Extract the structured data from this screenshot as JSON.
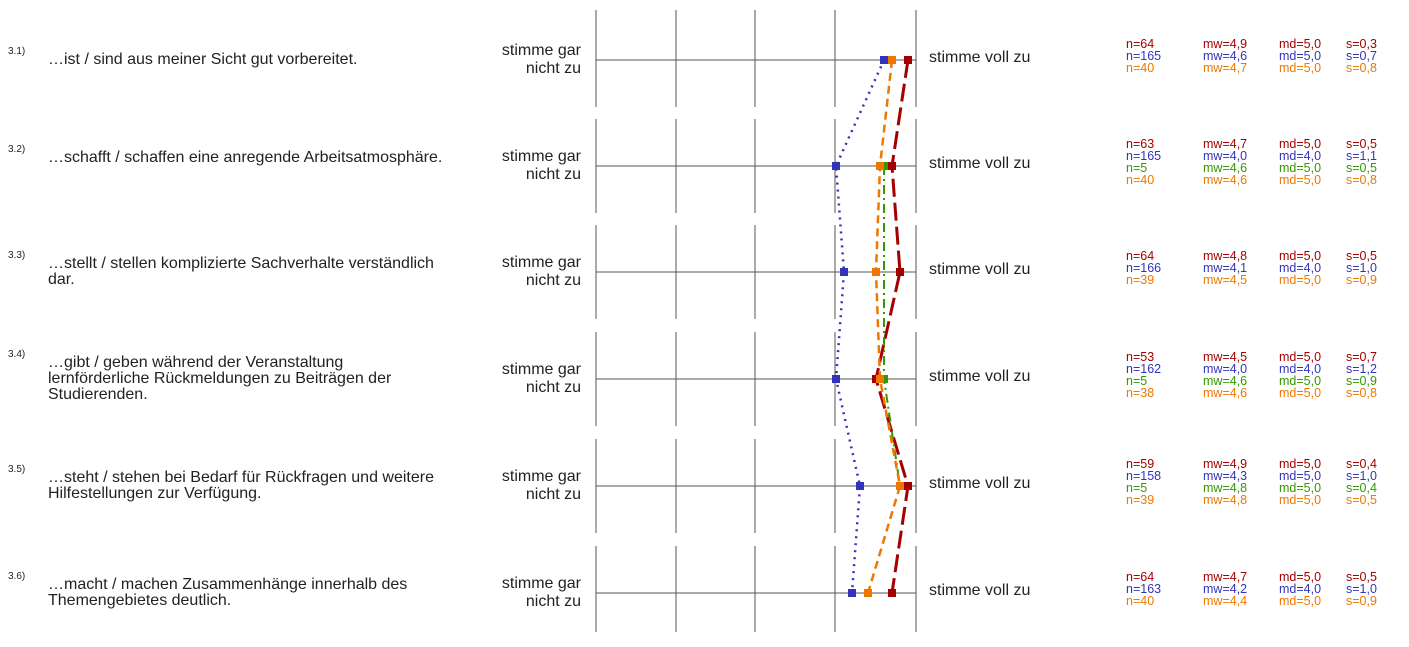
{
  "chart_data": {
    "type": "line",
    "scale": {
      "min": 1,
      "max": 5
    },
    "anchors": {
      "left": "stimme gar nicht zu",
      "right": "stimme voll zu"
    },
    "series": [
      {
        "color": "#a50000",
        "dash": "long-dash"
      },
      {
        "color": "#3333bb",
        "dash": "dotted"
      },
      {
        "color": "#339900",
        "dash": "dash-dot"
      },
      {
        "color": "#ee7700",
        "dash": "dashed"
      }
    ],
    "items": [
      {
        "num": "3.1)",
        "text": "…ist / sind aus meiner Sicht gut vorbereitet.",
        "stats": [
          {
            "series": 0,
            "n": "n=64",
            "mw": "mw=4,9",
            "md": "md=5,0",
            "s": "s=0,3",
            "value": 4.9
          },
          {
            "series": 1,
            "n": "n=165",
            "mw": "mw=4,6",
            "md": "md=5,0",
            "s": "s=0,7",
            "value": 4.6
          },
          {
            "series": 3,
            "n": "n=40",
            "mw": "mw=4,7",
            "md": "md=5,0",
            "s": "s=0,8",
            "value": 4.7
          }
        ]
      },
      {
        "num": "3.2)",
        "text": "…schafft / schaffen eine anregende Arbeitsatmosphäre.",
        "stats": [
          {
            "series": 0,
            "n": "n=63",
            "mw": "mw=4,7",
            "md": "md=5,0",
            "s": "s=0,5",
            "value": 4.7
          },
          {
            "series": 1,
            "n": "n=165",
            "mw": "mw=4,0",
            "md": "md=4,0",
            "s": "s=1,1",
            "value": 4.0
          },
          {
            "series": 2,
            "n": "n=5",
            "mw": "mw=4,6",
            "md": "md=5,0",
            "s": "s=0,5",
            "value": 4.6
          },
          {
            "series": 3,
            "n": "n=40",
            "mw": "mw=4,6",
            "md": "md=5,0",
            "s": "s=0,8",
            "value": 4.55
          }
        ]
      },
      {
        "num": "3.3)",
        "text": "…stellt / stellen komplizierte Sachverhalte verständlich dar.",
        "stats": [
          {
            "series": 0,
            "n": "n=64",
            "mw": "mw=4,8",
            "md": "md=5,0",
            "s": "s=0,5",
            "value": 4.8
          },
          {
            "series": 1,
            "n": "n=166",
            "mw": "mw=4,1",
            "md": "md=4,0",
            "s": "s=1,0",
            "value": 4.1
          },
          {
            "series": 3,
            "n": "n=39",
            "mw": "mw=4,5",
            "md": "md=5,0",
            "s": "s=0,9",
            "value": 4.5
          }
        ]
      },
      {
        "num": "3.4)",
        "text": "…gibt / geben während der Veranstaltung lernförderliche Rückmeldungen zu Beiträgen der Studierenden.",
        "stats": [
          {
            "series": 0,
            "n": "n=53",
            "mw": "mw=4,5",
            "md": "md=5,0",
            "s": "s=0,7",
            "value": 4.5
          },
          {
            "series": 1,
            "n": "n=162",
            "mw": "mw=4,0",
            "md": "md=4,0",
            "s": "s=1,2",
            "value": 4.0
          },
          {
            "series": 2,
            "n": "n=5",
            "mw": "mw=4,6",
            "md": "md=5,0",
            "s": "s=0,9",
            "value": 4.6
          },
          {
            "series": 3,
            "n": "n=38",
            "mw": "mw=4,6",
            "md": "md=5,0",
            "s": "s=0,8",
            "value": 4.55
          }
        ]
      },
      {
        "num": "3.5)",
        "text": "…steht / stehen bei Bedarf für Rückfragen und weitere Hilfestellungen zur Verfügung.",
        "stats": [
          {
            "series": 0,
            "n": "n=59",
            "mw": "mw=4,9",
            "md": "md=5,0",
            "s": "s=0,4",
            "value": 4.9
          },
          {
            "series": 1,
            "n": "n=158",
            "mw": "mw=4,3",
            "md": "md=5,0",
            "s": "s=1,0",
            "value": 4.3
          },
          {
            "series": 2,
            "n": "n=5",
            "mw": "mw=4,8",
            "md": "md=5,0",
            "s": "s=0,4",
            "value": 4.8
          },
          {
            "series": 3,
            "n": "n=39",
            "mw": "mw=4,8",
            "md": "md=5,0",
            "s": "s=0,5",
            "value": 4.8
          }
        ]
      },
      {
        "num": "3.6)",
        "text": "…macht / machen Zusammenhänge innerhalb des Themengebietes deutlich.",
        "stats": [
          {
            "series": 0,
            "n": "n=64",
            "mw": "mw=4,7",
            "md": "md=5,0",
            "s": "s=0,5",
            "value": 4.7
          },
          {
            "series": 1,
            "n": "n=163",
            "mw": "mw=4,2",
            "md": "md=4,0",
            "s": "s=1,0",
            "value": 4.2
          },
          {
            "series": 3,
            "n": "n=40",
            "mw": "mw=4,4",
            "md": "md=5,0",
            "s": "s=0,9",
            "value": 4.4
          }
        ]
      }
    ]
  }
}
